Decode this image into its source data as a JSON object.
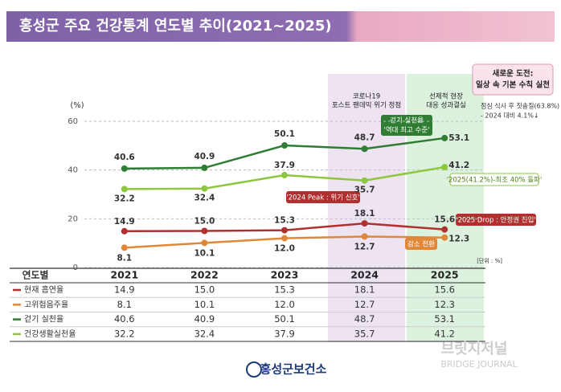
{
  "chart_data": {
    "type": "line",
    "title": "홍성군 주요 건강통계 연도별 추이(2021~2025)",
    "y_label": "(%)",
    "unit_note": "[단위 : %]",
    "table_header": "연도별",
    "categories": [
      "2021",
      "2022",
      "2023",
      "2024",
      "2025"
    ],
    "ylim": [
      0,
      60
    ],
    "yticks": [
      0,
      20,
      40,
      60
    ],
    "grid": true,
    "series": [
      {
        "name": "현재 흡연율",
        "color": "#b0302f",
        "values": [
          14.9,
          15.0,
          15.3,
          18.1,
          15.6
        ],
        "value_labels": [
          "14.9",
          "15.0",
          "15.3",
          "18.1",
          "15.6"
        ]
      },
      {
        "name": "고위험음주율",
        "color": "#e0883a",
        "values": [
          8.1,
          10.1,
          12.0,
          12.7,
          12.3
        ],
        "value_labels": [
          "8.1",
          "10.1",
          "12.0",
          "12.7",
          "12.3"
        ]
      },
      {
        "name": "걷기 실천율",
        "color": "#2e7d32",
        "values": [
          40.6,
          40.9,
          50.1,
          48.7,
          53.1
        ],
        "value_labels": [
          "40.6",
          "40.9",
          "50.1",
          "48.7",
          "53.1"
        ]
      },
      {
        "name": "건강생활실천율",
        "color": "#8dc63f",
        "values": [
          32.2,
          32.4,
          37.9,
          35.7,
          41.2
        ],
        "value_labels": [
          "32.2",
          "32.4",
          "37.9",
          "35.7",
          "41.2"
        ]
      }
    ],
    "annotations": {
      "covid": [
        "코로나19",
        "포스트 팬데믹 위기 정점"
      ],
      "response": [
        "선제적 현장",
        "대응 성과결실"
      ],
      "challenge": [
        "새로운 도전:",
        "일상 속 기본 수칙 실천"
      ],
      "brushing": [
        "점심 식사 후 칫솔질(63.8%)",
        "- 2024 대비 4.1%↓"
      ],
      "walking": [
        "걷기 실천율",
        "'역대 최고 수준'"
      ],
      "peak": "'2024 Peak : 위기 신호'",
      "drop": "'2025 Drop : 안정권 진입'",
      "record": "'2025(41.2%)-최초 40% 돌파'",
      "decline": "감소 전환"
    },
    "source": "홍성군보건소",
    "watermark": [
      "브릿지저널",
      "BRIDGE JOURNAL"
    ]
  }
}
